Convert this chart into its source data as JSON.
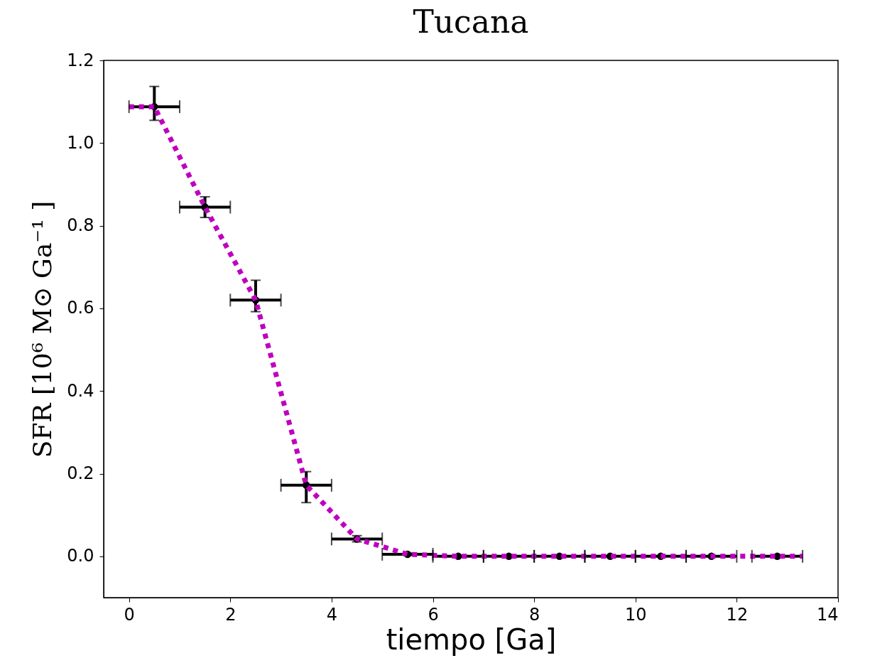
{
  "chart_data": {
    "type": "scatter",
    "title": "Tucana",
    "xlabel": "tiempo [Ga]",
    "ylabel": "SFR [10⁶ M⊙ Ga⁻¹ ]",
    "xlim": [
      -0.5,
      14
    ],
    "xticks": [
      0,
      2,
      4,
      6,
      8,
      10,
      12,
      14
    ],
    "ylim": [
      -0.1,
      1.2
    ],
    "yticks": [
      {
        "value": 0,
        "label": "0.0"
      },
      0.2,
      0.4,
      0.6,
      0.8,
      {
        "value": 1,
        "label": "1.0"
      },
      1.2
    ],
    "grid": false,
    "series": [
      {
        "color": "#000000",
        "marker": "circle",
        "x": [
          0.5,
          1.5,
          2.5,
          3.5,
          4.5,
          5.5,
          6.5,
          7.5,
          8.5,
          9.5,
          10.5,
          11.5,
          12.8
        ],
        "values": [
          1.088,
          0.845,
          0.62,
          0.172,
          0.042,
          0.005,
          0,
          0,
          0,
          0,
          0,
          0,
          0
        ],
        "errors": [
          [
            1.055,
            1.137
          ],
          [
            0.82,
            0.87
          ],
          [
            0.592,
            0.668
          ],
          [
            0.13,
            0.205
          ],
          [
            0.035,
            0.05
          ],
          [
            0.002,
            0.008
          ],
          null,
          null,
          null,
          null,
          null,
          null,
          null
        ],
        "xerrors": [
          0.5,
          0.5,
          0.5,
          0.5,
          0.5,
          0.5,
          0.5,
          0.5,
          0.5,
          0.5,
          0.5,
          0.5,
          0.5
        ]
      },
      {
        "type": "line",
        "color": "#bf00bf",
        "marker": "none",
        "line_style": "dotted",
        "x": [
          0,
          0.5,
          1.5,
          2.5,
          3.5,
          4.5,
          5.5,
          6.5,
          7.5,
          8.5,
          9.5,
          10.5,
          11.5,
          12.8,
          13.3
        ],
        "values": [
          1.088,
          1.088,
          0.845,
          0.62,
          0.172,
          0.042,
          0.005,
          0,
          0,
          0,
          0,
          0,
          0,
          0,
          0
        ]
      }
    ]
  }
}
